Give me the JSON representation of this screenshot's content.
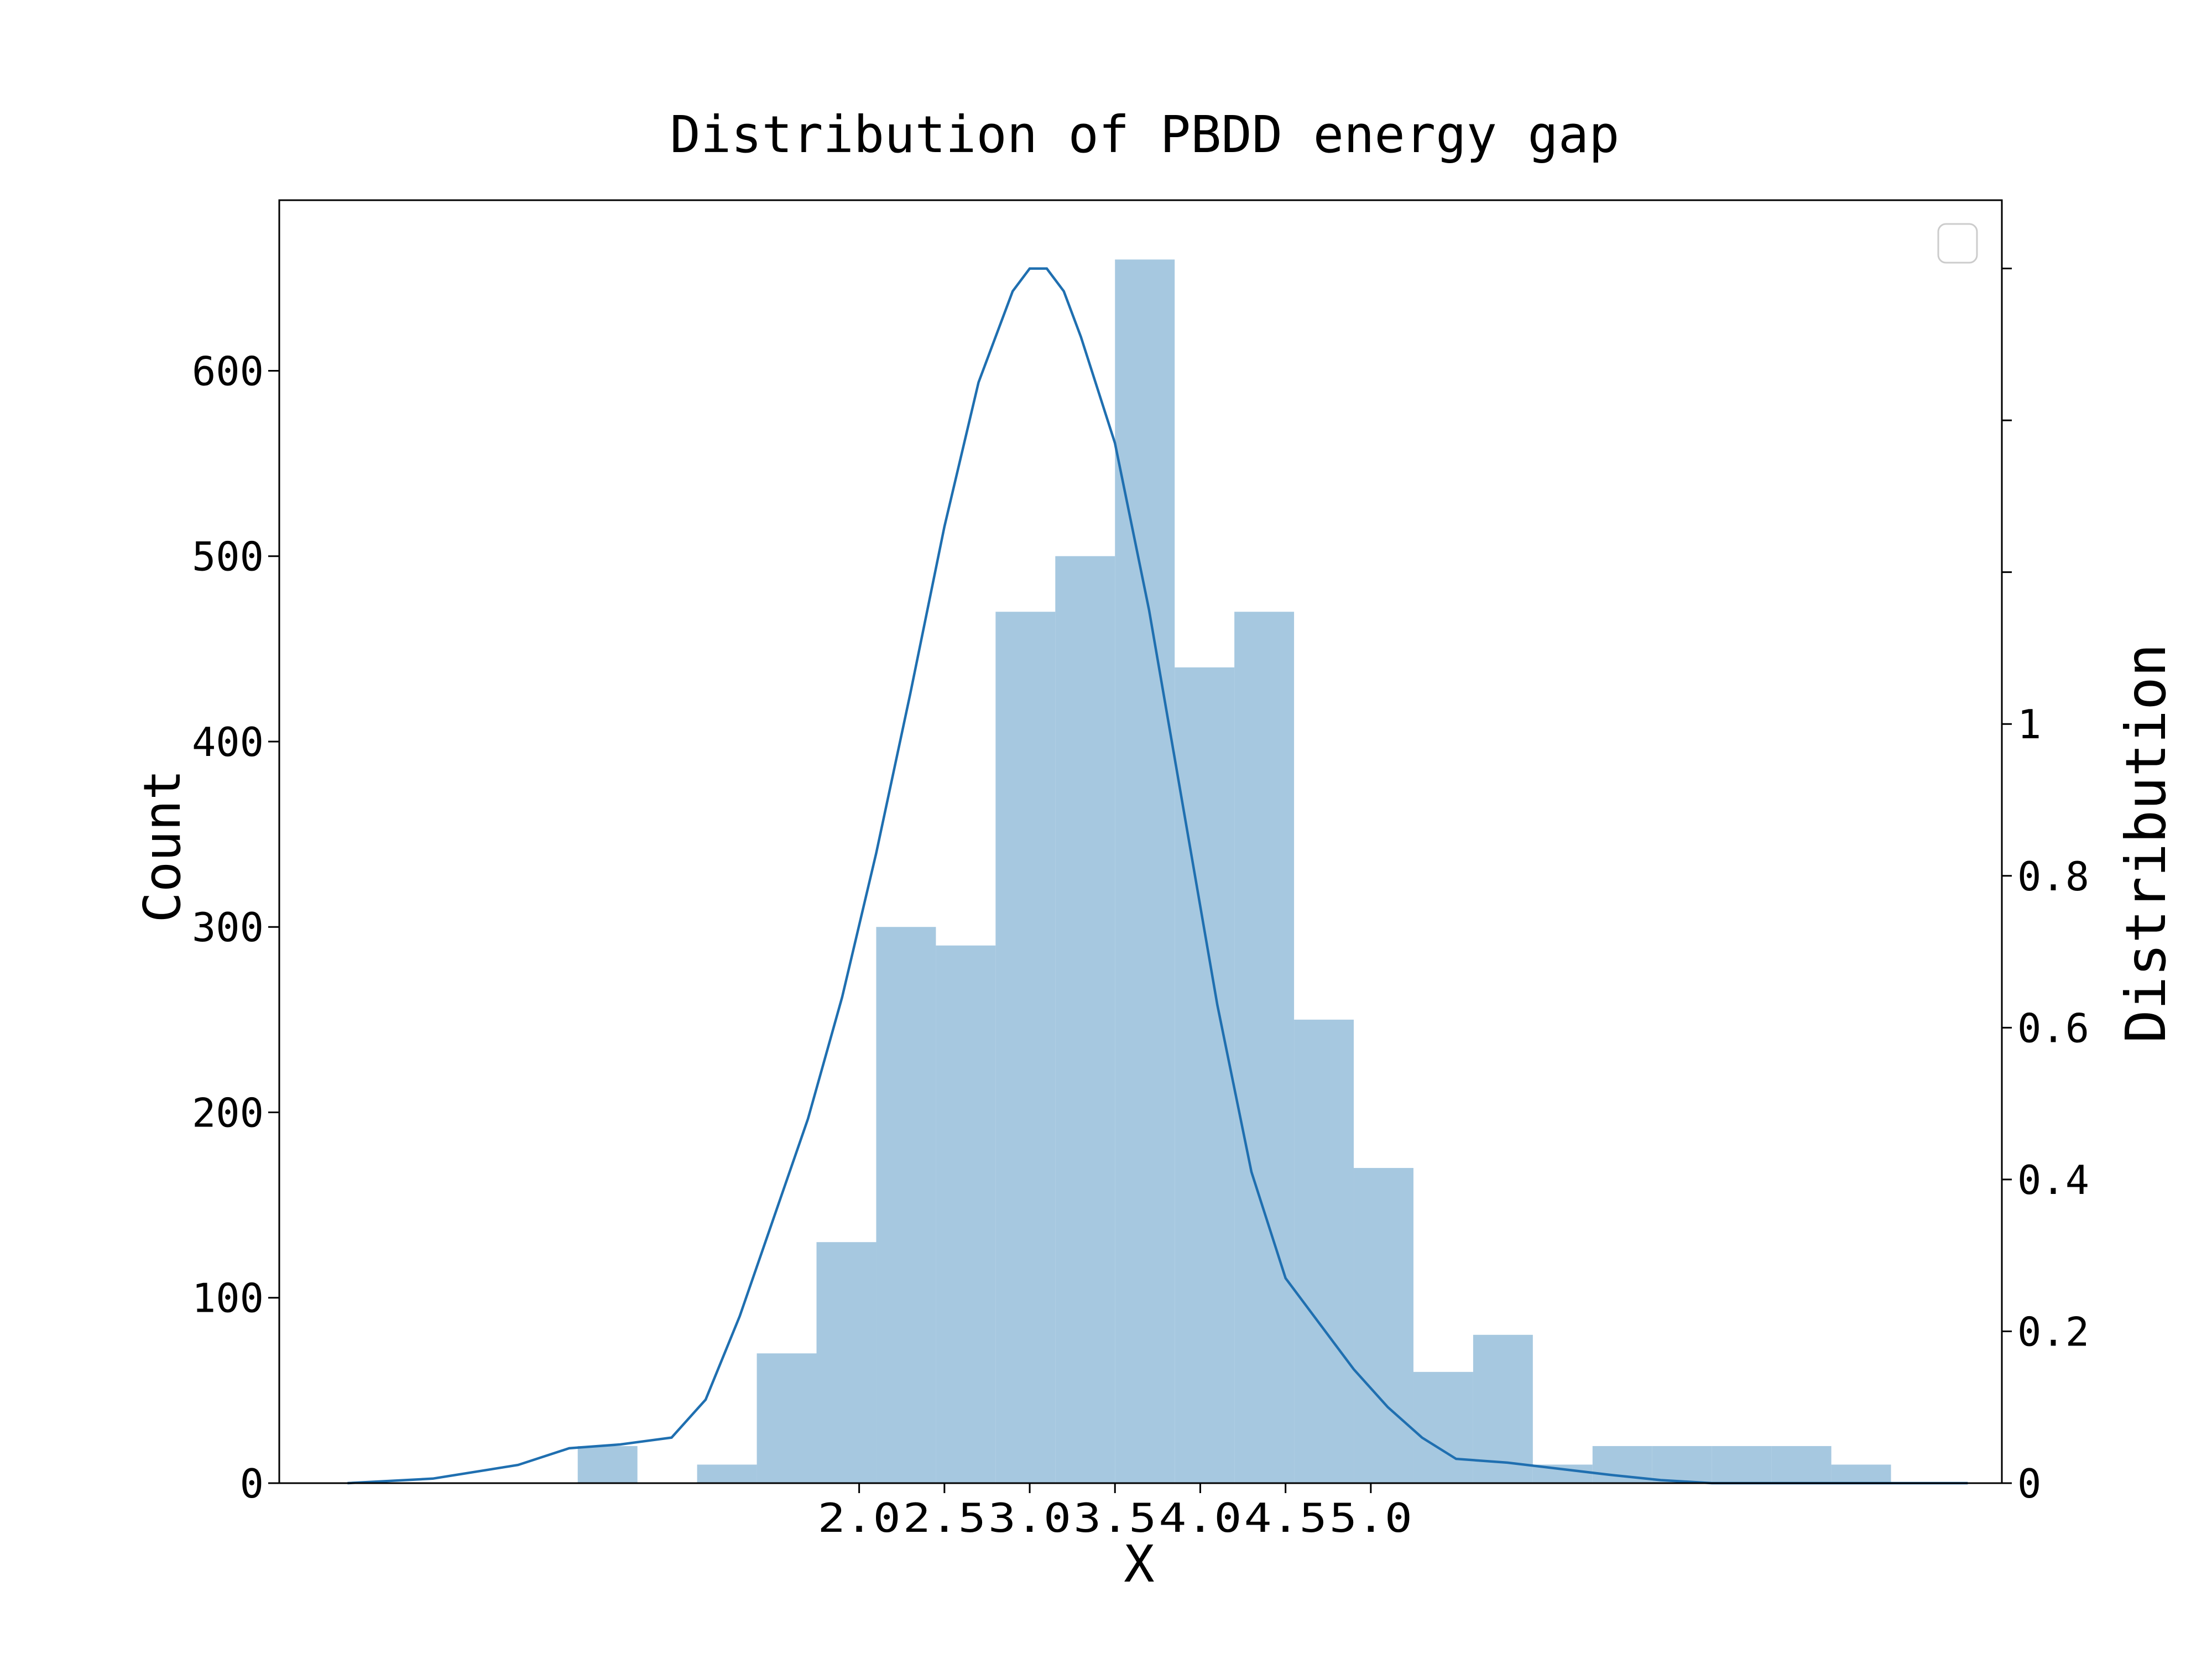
{
  "chart_data": {
    "type": "bar",
    "title": "Distribution of PBDD energy gap",
    "xlabel": "X",
    "ylabel": "Count",
    "ylabel_right": "Distribution",
    "grid": false,
    "legend": "top-right",
    "legend_entries": [],
    "xlim": [
      -1.4,
      8.7
    ],
    "ylim": [
      0,
      692
    ],
    "ylim_right": [
      0,
      1.69
    ],
    "x_ticks": [
      2.0,
      2.5,
      3.0,
      3.5,
      4.0,
      4.5,
      5.0
    ],
    "x_tick_labels": [
      "2.0",
      "2.5",
      "3.0",
      "3.5",
      "4.0",
      "4.5",
      "5.0"
    ],
    "y_ticks": [
      0,
      100,
      200,
      300,
      400,
      500,
      600
    ],
    "y_tick_labels": [
      "0",
      "100",
      "200",
      "300",
      "400",
      "500",
      "600"
    ],
    "y_right_ticks": [
      0,
      0.2,
      0.4,
      0.6,
      0.8,
      1.0,
      1.2,
      1.4,
      1.6
    ],
    "y_right_tick_labels": [
      "0",
      "0.2",
      "0.4",
      "0.6",
      "0.8",
      "1",
      "",
      "",
      ""
    ],
    "histogram": {
      "bin_edges": [
        0.0,
        0.35,
        0.7,
        1.05,
        1.4,
        1.75,
        2.1,
        2.45,
        2.8,
        3.15,
        3.5,
        3.85,
        4.2,
        4.55,
        4.9,
        5.25,
        5.6,
        5.95,
        6.3,
        6.65,
        7.0,
        7.35,
        7.7,
        8.05,
        8.4
      ],
      "values": [
        0,
        20,
        0,
        10,
        70,
        130,
        300,
        290,
        470,
        500,
        660,
        440,
        470,
        250,
        170,
        60,
        80,
        10,
        20,
        20,
        20,
        20,
        10,
        0
      ],
      "color": "#a6c8e0"
    },
    "density": {
      "axis": "right",
      "color": "#1f6fb0",
      "x": [
        -1.0,
        -0.5,
        0.0,
        0.3,
        0.6,
        0.9,
        1.1,
        1.3,
        1.5,
        1.7,
        1.9,
        2.1,
        2.3,
        2.5,
        2.7,
        2.9,
        3.0,
        3.1,
        3.2,
        3.3,
        3.5,
        3.7,
        3.9,
        4.1,
        4.3,
        4.5,
        4.7,
        4.9,
        5.1,
        5.3,
        5.5,
        5.8,
        6.1,
        6.4,
        6.7,
        7.0,
        7.3,
        7.6,
        8.0,
        8.5
      ],
      "y": [
        0.0,
        0.006,
        0.024,
        0.046,
        0.051,
        0.06,
        0.11,
        0.22,
        0.35,
        0.48,
        0.64,
        0.83,
        1.04,
        1.26,
        1.45,
        1.57,
        1.6,
        1.6,
        1.57,
        1.51,
        1.37,
        1.15,
        0.89,
        0.63,
        0.41,
        0.27,
        0.21,
        0.15,
        0.1,
        0.06,
        0.032,
        0.027,
        0.019,
        0.011,
        0.004,
        0.0,
        0.0,
        0.0,
        0.0,
        0.0
      ]
    }
  }
}
